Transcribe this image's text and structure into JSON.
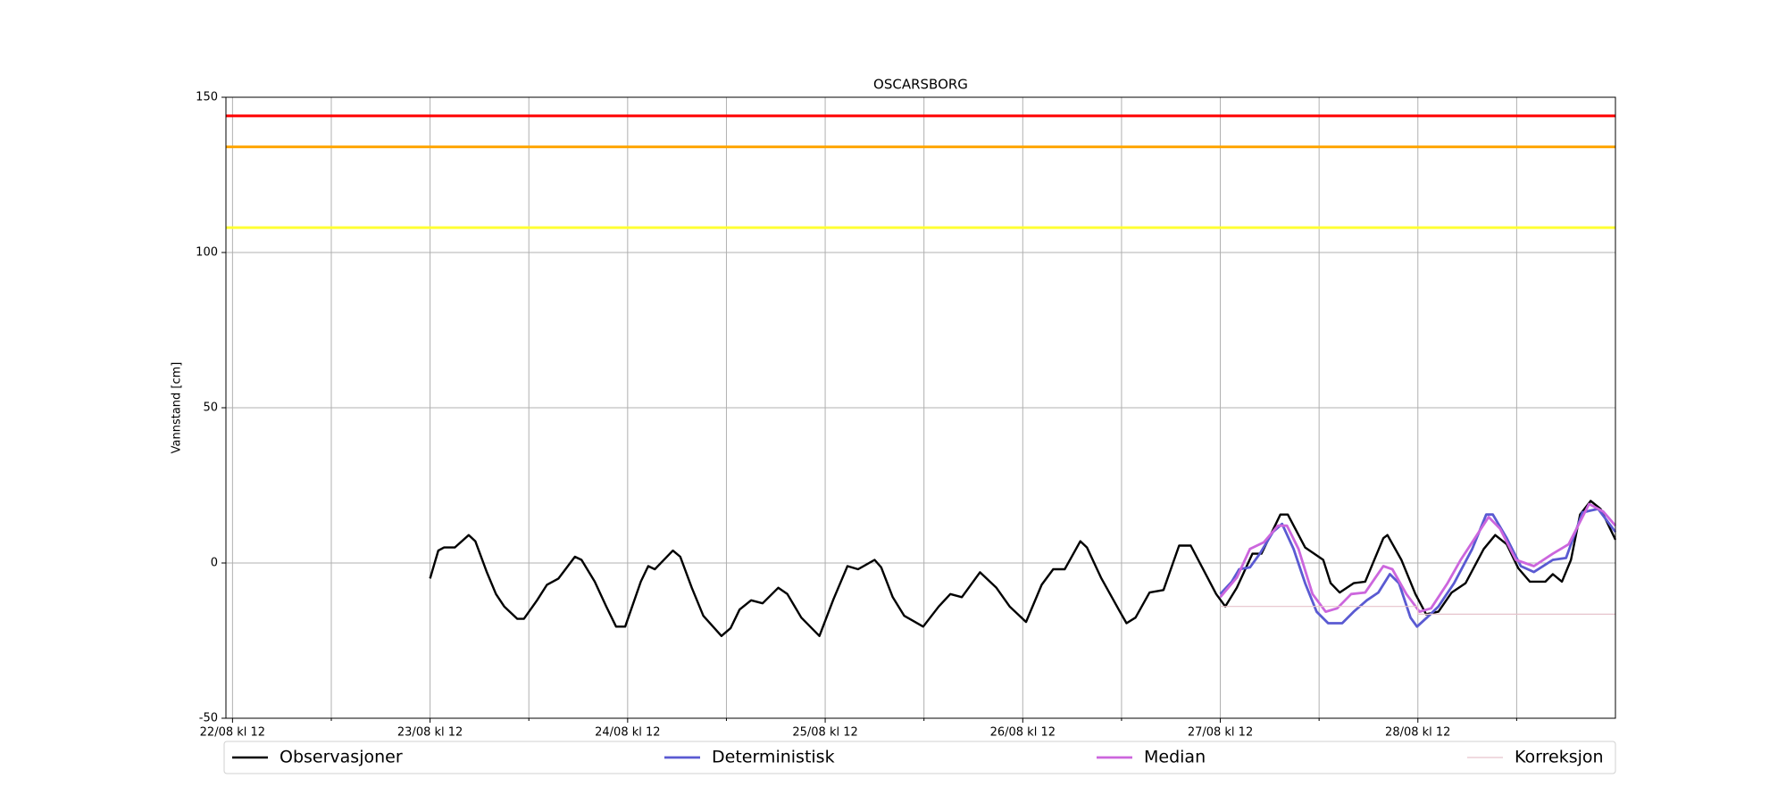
{
  "chart_data": {
    "type": "line",
    "title": "OSCARSBORG",
    "y_label": "Vannstand [cm]",
    "xlim": [
      -0.8,
      168
    ],
    "ylim": [
      -50,
      150
    ],
    "xticks": [
      {
        "value": 0,
        "label": "22/08 kl 12"
      },
      {
        "value": 24,
        "label": "23/08 kl 12"
      },
      {
        "value": 48,
        "label": "24/08 kl 12"
      },
      {
        "value": 72,
        "label": "25/08 kl 12"
      },
      {
        "value": 96,
        "label": "26/08 kl 12"
      },
      {
        "value": 120,
        "label": "27/08 kl 12"
      },
      {
        "value": 144,
        "label": "28/08 kl 12"
      }
    ],
    "xticks_minor": [
      12,
      36,
      60,
      84,
      108,
      132,
      156
    ],
    "yticks": [
      -50,
      0,
      50,
      100,
      150
    ],
    "grid": true,
    "thresholds": [
      {
        "value": 144,
        "color": "#ff0000"
      },
      {
        "value": 134,
        "color": "#ffa500"
      },
      {
        "value": 108,
        "color": "#ffff33"
      }
    ],
    "series": [
      {
        "name": "Observasjoner",
        "color": "#000000",
        "x": [
          24,
          25,
          25.7,
          27,
          28.7,
          29.5,
          30.9,
          32,
          33,
          34.6,
          35.4,
          37,
          38.2,
          39.6,
          41.6,
          42.4,
          44,
          45.4,
          46.6,
          47.7,
          49.6,
          50.5,
          51.3,
          53.5,
          54.4,
          55.8,
          57.2,
          59.4,
          60.5,
          61.6,
          63,
          64.4,
          66.3,
          67.4,
          69.1,
          71.3,
          73,
          74.7,
          76,
          78,
          78.8,
          80.2,
          81.6,
          83.9,
          85.8,
          87.2,
          88.6,
          90.8,
          92.8,
          94.4,
          96.4,
          98.3,
          99.7,
          101.1,
          103,
          103.8,
          105.5,
          107.8,
          108.6,
          109.7,
          111.4,
          113.1,
          115,
          116.4,
          119.5,
          120.6,
          122,
          123.9,
          125,
          127.3,
          128.2,
          130.3,
          132.5,
          133.4,
          134.5,
          136.2,
          137.6,
          139.8,
          140.3,
          142,
          143.7,
          145,
          146.5,
          148.1,
          149.8,
          152,
          153.4,
          154.8,
          156.2,
          157.6,
          159.5,
          160.4,
          161.5,
          162.6,
          163.7,
          165,
          166.2,
          168
        ],
        "values": [
          -5,
          4,
          5,
          5,
          9,
          7,
          -3,
          -10,
          -14,
          -18,
          -18,
          -12,
          -7,
          -5,
          2,
          1,
          -6,
          -14,
          -20.5,
          -20.5,
          -6,
          -1,
          -2,
          4,
          2,
          -8,
          -17,
          -23.5,
          -21,
          -15,
          -12,
          -13,
          -8,
          -10,
          -17.6,
          -23.5,
          -11.7,
          -1,
          -2,
          1,
          -1.4,
          -11,
          -17,
          -20.5,
          -14,
          -10,
          -11,
          -3,
          -8,
          -14,
          -19,
          -7,
          -2,
          -2,
          7,
          5,
          -4.7,
          -15.7,
          -19.4,
          -17.6,
          -9.5,
          -8.7,
          5.6,
          5.6,
          -10,
          -14,
          -8,
          3,
          3,
          15.6,
          15.6,
          5,
          1,
          -6.5,
          -9.5,
          -6.5,
          -6,
          8,
          9,
          1,
          -10,
          -16.5,
          -15.7,
          -9.5,
          -6.5,
          4.5,
          9,
          6,
          -1.7,
          -6,
          -6,
          -3.6,
          -6,
          1,
          15.6,
          20,
          17.4,
          7.5
        ]
      },
      {
        "name": "Deterministisk",
        "color": "#5a5ad2",
        "x": [
          120,
          121.4,
          122.3,
          123.6,
          124.8,
          126.4,
          127.5,
          128.9,
          130.3,
          131.7,
          133.1,
          134.8,
          136.2,
          137.8,
          139.2,
          140.6,
          141.7,
          143.1,
          143.9,
          145.1,
          146.5,
          148.4,
          150.6,
          152.3,
          153.1,
          154.8,
          156.5,
          158.1,
          160.4,
          162,
          164,
          165.9,
          168
        ],
        "values": [
          -10,
          -6,
          -2,
          -1.4,
          3,
          10,
          12.6,
          4.5,
          -6.5,
          -15.7,
          -19.4,
          -19.4,
          -15.7,
          -12,
          -9.5,
          -3.6,
          -6.5,
          -17.6,
          -20.5,
          -17.6,
          -14,
          -6.5,
          4.5,
          15.6,
          15.6,
          8,
          -1,
          -2.9,
          1,
          1.6,
          16.3,
          17.4,
          10
        ]
      },
      {
        "name": "Median",
        "color": "#cc66dd",
        "x": [
          120,
          122,
          123.6,
          125.3,
          127,
          128.1,
          129.5,
          131.2,
          132.8,
          134.2,
          135.9,
          137.6,
          139.8,
          140.9,
          142.6,
          144.2,
          145.6,
          147.6,
          149.2,
          152.6,
          154,
          155.9,
          158.1,
          160.4,
          162.3,
          164.8,
          166.5,
          168
        ],
        "values": [
          -11,
          -4.7,
          4.5,
          6.7,
          12,
          12,
          4.5,
          -10,
          -15.7,
          -14.6,
          -10,
          -9.5,
          -1,
          -2,
          -10,
          -15.7,
          -14.6,
          -6.5,
          1,
          14.8,
          11,
          1,
          -1,
          3,
          6,
          19,
          16.6,
          12
        ]
      },
      {
        "name": "Korreksjon",
        "color": "#e6c3cc",
        "x": [
          120,
          144,
          144,
          168
        ],
        "values": [
          -14,
          -14,
          -16.5,
          -16.5
        ]
      }
    ]
  }
}
